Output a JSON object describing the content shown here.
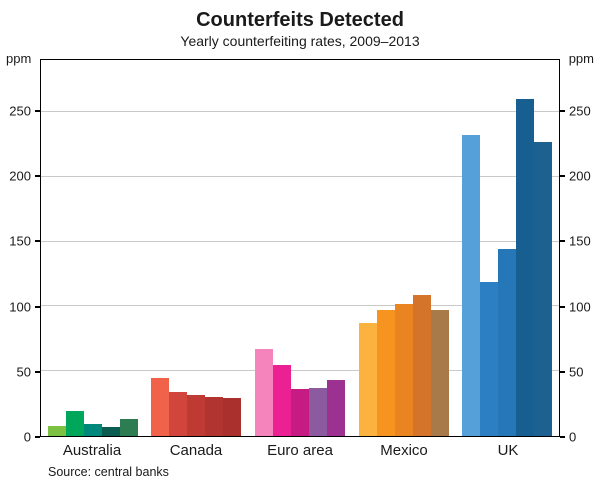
{
  "title": "Counterfeits Detected",
  "subtitle": "Yearly counterfeiting rates, 2009–2013",
  "source": "Source: central banks",
  "chart_data": {
    "type": "bar",
    "title": "Counterfeits Detected",
    "subtitle": "Yearly counterfeiting rates, 2009–2013",
    "unit_label": "ppm",
    "years": [
      2009,
      2010,
      2011,
      2012,
      2013
    ],
    "ylim": [
      0,
      290
    ],
    "yticks": [
      0,
      50,
      100,
      150,
      200,
      250
    ],
    "grid": true,
    "groups": [
      {
        "label": "Australia",
        "values": [
          8,
          19,
          9,
          7,
          13
        ],
        "colors": [
          "#7cc142",
          "#00a65a",
          "#00897b",
          "#0b5d52",
          "#2e7d52"
        ]
      },
      {
        "label": "Canada",
        "values": [
          45,
          34,
          32,
          30,
          29
        ],
        "colors": [
          "#f0634a",
          "#d2453c",
          "#c03a34",
          "#b23431",
          "#aa302d"
        ]
      },
      {
        "label": "Euro area",
        "values": [
          67,
          55,
          36,
          37,
          43
        ],
        "colors": [
          "#f584bc",
          "#eb2092",
          "#c51b82",
          "#8c5a9f",
          "#9c3191"
        ]
      },
      {
        "label": "Mexico",
        "values": [
          87,
          97,
          102,
          109,
          97
        ],
        "colors": [
          "#fcb23f",
          "#f79420",
          "#ea8420",
          "#d3742a",
          "#a87a4a"
        ]
      },
      {
        "label": "UK",
        "values": [
          232,
          119,
          144,
          260,
          227
        ],
        "colors": [
          "#55a0d9",
          "#2b7fc2",
          "#2577b8",
          "#175f90",
          "#1d6190"
        ]
      }
    ]
  }
}
